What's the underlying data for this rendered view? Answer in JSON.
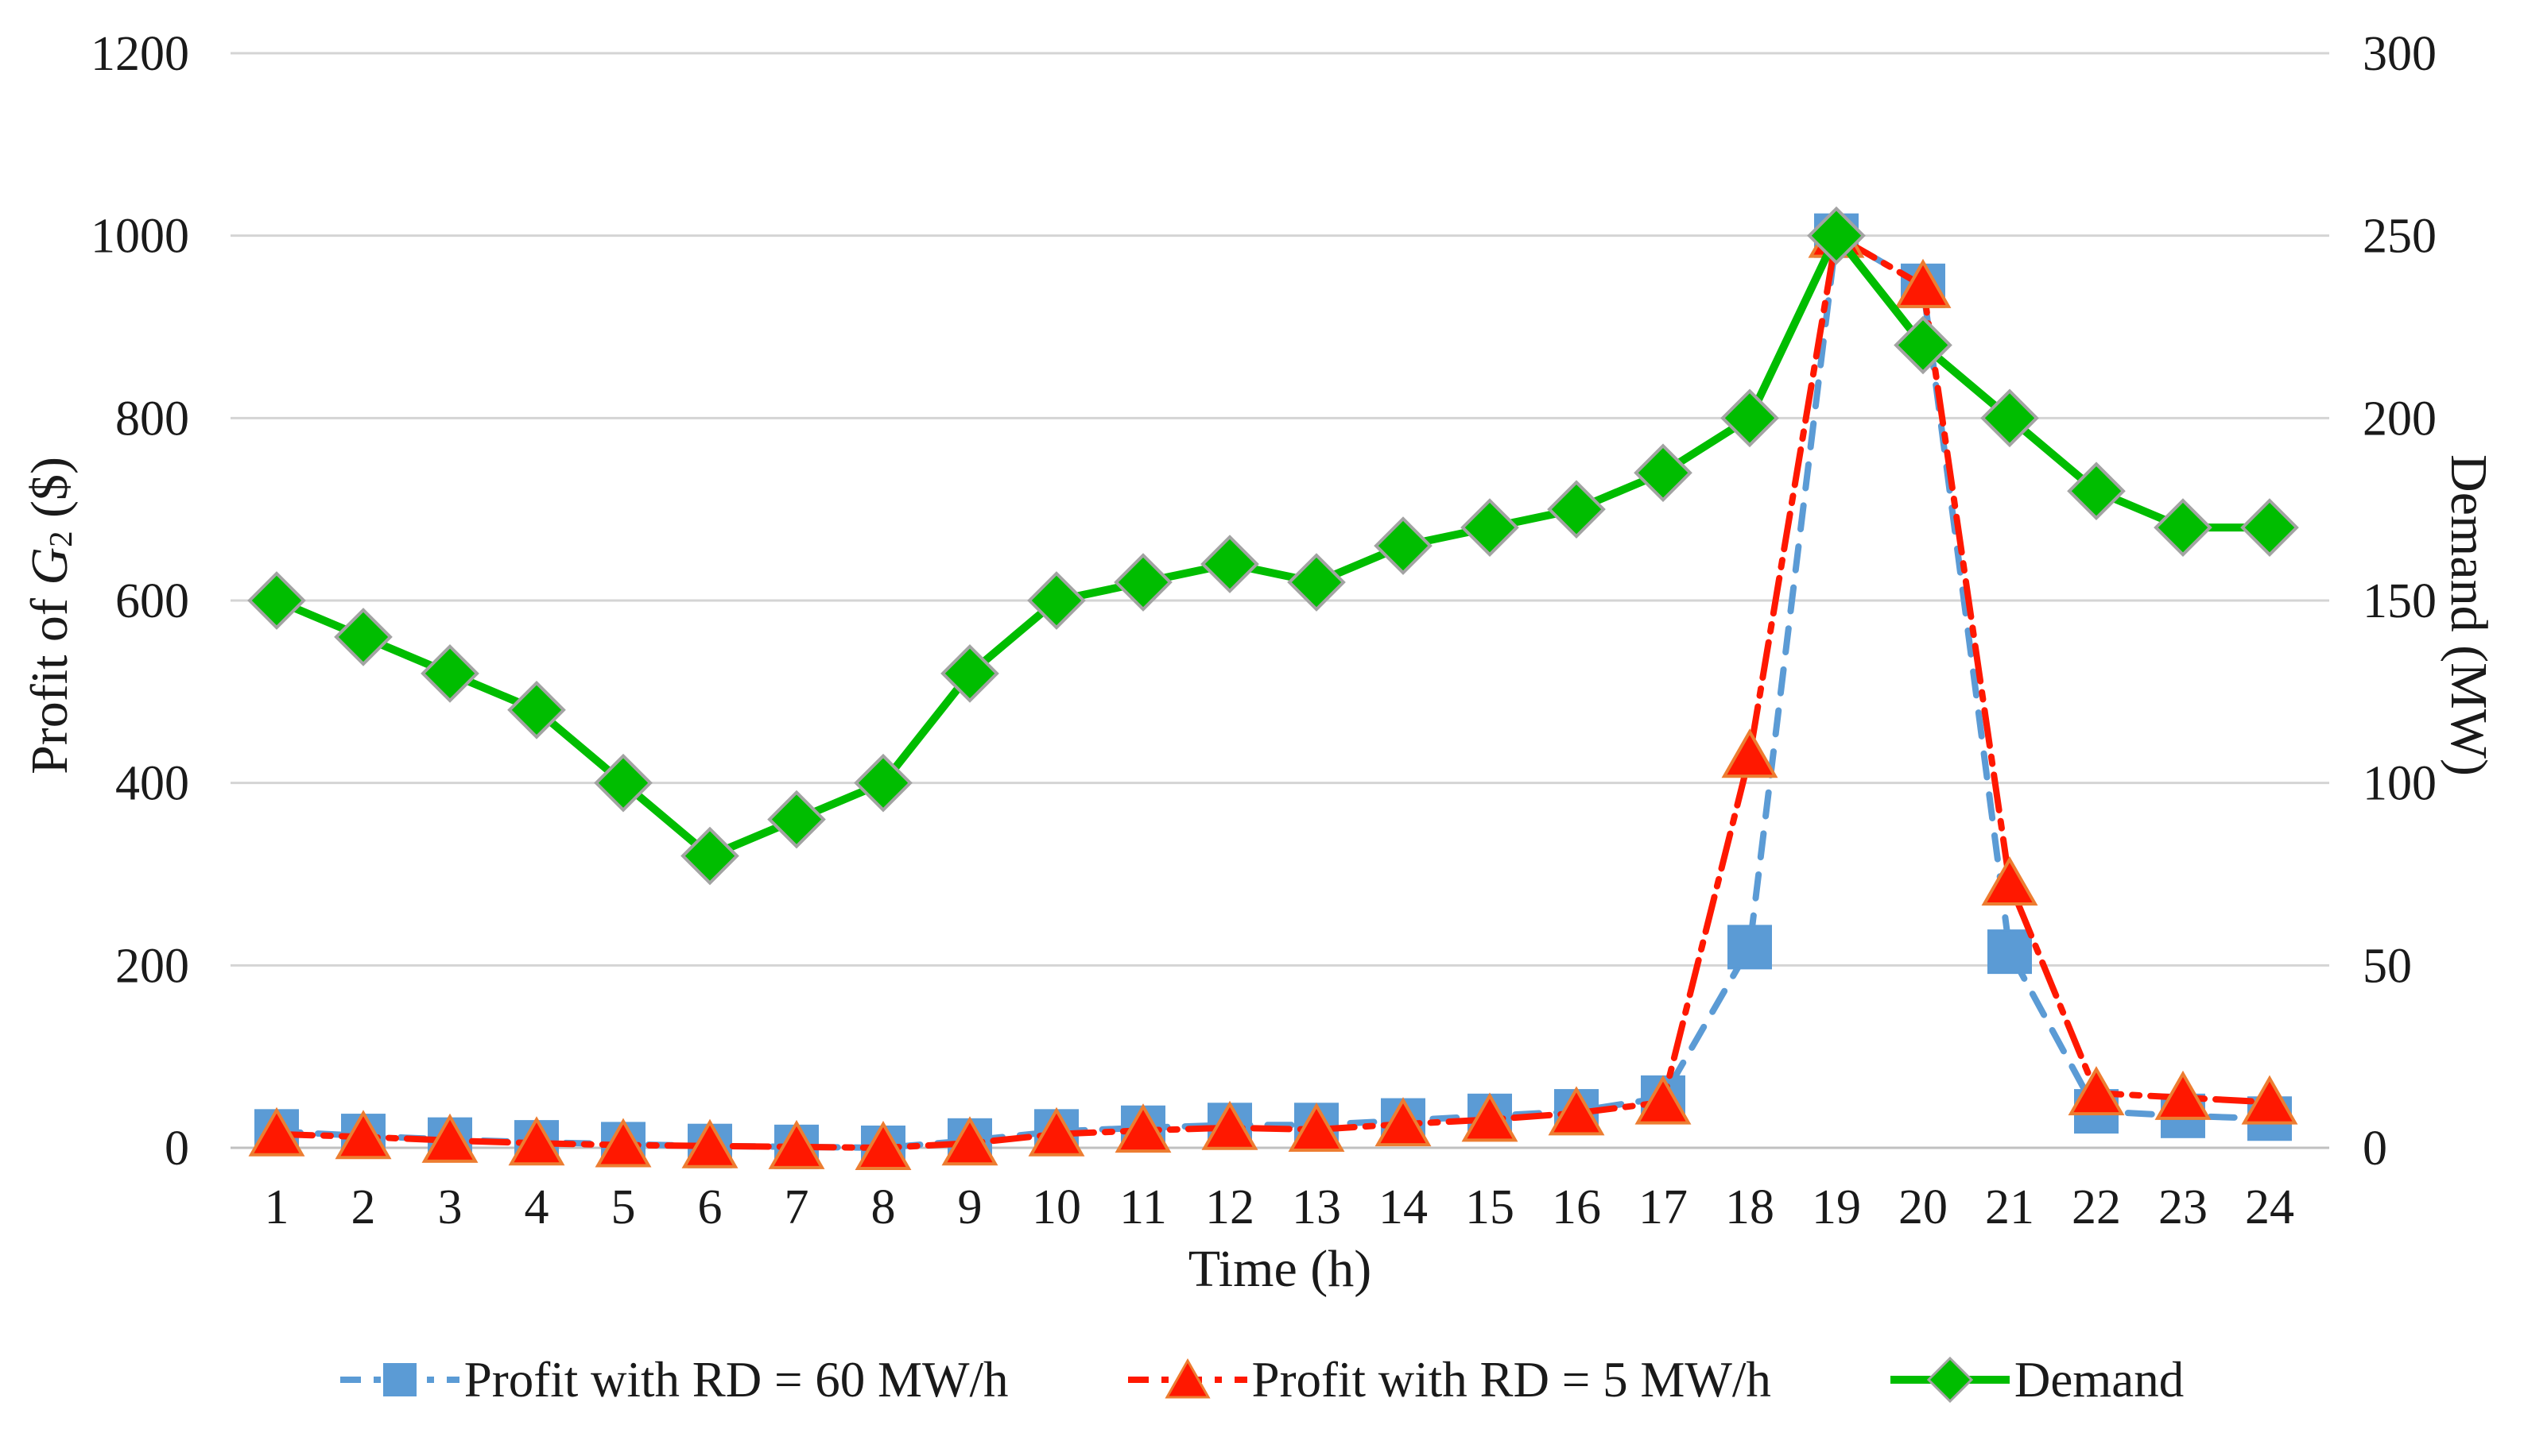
{
  "chart_data": {
    "type": "line",
    "title": "",
    "categories": [
      1,
      2,
      3,
      4,
      5,
      6,
      7,
      8,
      9,
      10,
      11,
      12,
      13,
      14,
      15,
      16,
      17,
      18,
      19,
      20,
      21,
      22,
      23,
      24
    ],
    "x_axis": {
      "title": "Time (h)"
    },
    "left_axis": {
      "title_prefix": "Profit of ",
      "title_var": "G",
      "title_sub": "2",
      "title_suffix": " ($)",
      "min": 0,
      "max": 1200,
      "ticks": [
        1200,
        1000,
        800,
        600,
        400,
        200,
        0
      ]
    },
    "right_axis": {
      "title": "Demand (MW)",
      "min": 0,
      "max": 300,
      "ticks": [
        300,
        250,
        200,
        150,
        100,
        50,
        0
      ]
    },
    "grid": true,
    "legend_position": "bottom",
    "series": [
      {
        "name": "Profit with RD = 60 MW/h",
        "axis": "left",
        "line_style": "dashed",
        "marker": "square",
        "color": "#5B9BD5",
        "marker_border": "#5B9BD5",
        "values": [
          18,
          13,
          9,
          6,
          4,
          2,
          1,
          0,
          8,
          18,
          22,
          25,
          25,
          30,
          35,
          40,
          55,
          220,
          1000,
          945,
          215,
          40,
          35,
          32
        ]
      },
      {
        "name": "Profit with RD = 5 MW/h",
        "axis": "left",
        "line_style": "dashdot",
        "marker": "triangle",
        "color": "#FF1800",
        "marker_border": "#ED7D31",
        "values": [
          15,
          12,
          8,
          5,
          3,
          2,
          1,
          0,
          5,
          15,
          19,
          22,
          20,
          26,
          31,
          38,
          50,
          430,
          1000,
          945,
          290,
          60,
          55,
          50
        ]
      },
      {
        "name": "Demand",
        "axis": "right",
        "line_style": "solid",
        "marker": "diamond",
        "color": "#00BD00",
        "marker_border": "#A3A3A3",
        "values": [
          150,
          140,
          130,
          120,
          100,
          80,
          90,
          100,
          130,
          150,
          155,
          160,
          155,
          165,
          170,
          175,
          185,
          200,
          250,
          220,
          200,
          180,
          170,
          170
        ]
      }
    ]
  },
  "colors": {
    "gridline": "#D4D4D4",
    "axis_line": "#C0C0C0",
    "text": "#1A1A1A",
    "background": "#FFFFFF"
  }
}
